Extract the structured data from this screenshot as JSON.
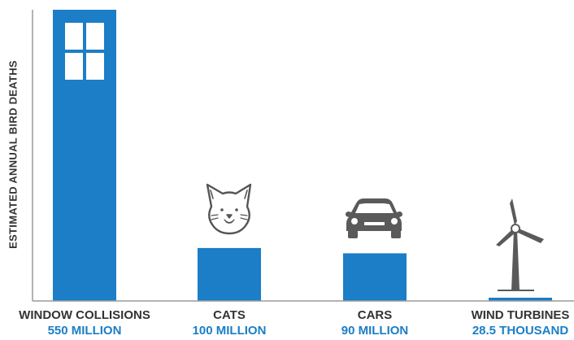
{
  "colors": {
    "bar": "#1b7ec6",
    "axis": "#9a9a9a",
    "label": "#333333",
    "value": "#1b7ec6",
    "icon": "#5a5a5a"
  },
  "chart_data": {
    "type": "bar",
    "categories": [
      "WINDOW COLLISIONS",
      "CATS",
      "CARS",
      "WIND TURBINES"
    ],
    "value_labels": [
      "550 MILLION",
      "100 MILLION",
      "90 MILLION",
      "28.5 THOUSAND"
    ],
    "values": [
      550000000,
      100000000,
      90000000,
      28500
    ],
    "ylabel": "ESTIMATED ANNUAL BIRD DEATHS",
    "xlabel": "",
    "title": "",
    "grid": false,
    "icons": [
      "window-icon",
      "cat-icon",
      "car-icon",
      "wind-turbine-icon"
    ]
  }
}
